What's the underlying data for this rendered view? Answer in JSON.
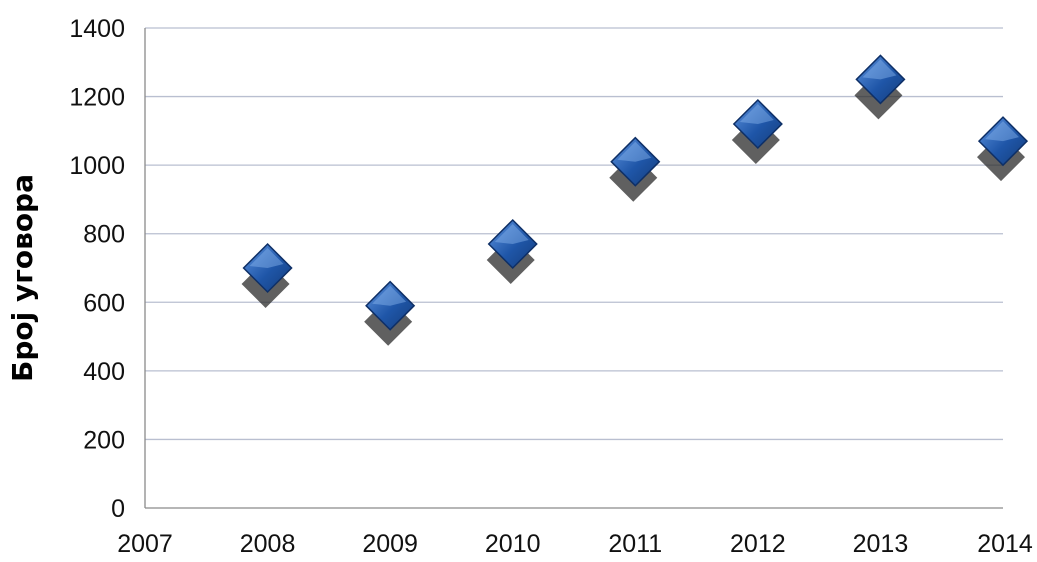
{
  "chart_data": {
    "type": "scatter",
    "title": "",
    "xlabel": "",
    "ylabel": "Број уговора",
    "xlim": [
      2007,
      2014
    ],
    "ylim": [
      0,
      1400
    ],
    "x_ticks": [
      2007,
      2008,
      2009,
      2010,
      2011,
      2012,
      2013,
      2014
    ],
    "y_ticks": [
      0,
      200,
      400,
      600,
      800,
      1000,
      1200,
      1400
    ],
    "grid": true,
    "legend": "none",
    "marker": "diamond",
    "colors": {
      "marker_fill": "#1f56a8",
      "marker_highlight": "#5f95e0",
      "marker_shadow": "#2b2b2b",
      "gridline": "#b9bfd0"
    },
    "series": [
      {
        "x": [
          2008,
          2009,
          2010,
          2011,
          2012,
          2013,
          2014
        ],
        "y": [
          700,
          590,
          770,
          1010,
          1120,
          1250,
          1070
        ]
      }
    ]
  }
}
